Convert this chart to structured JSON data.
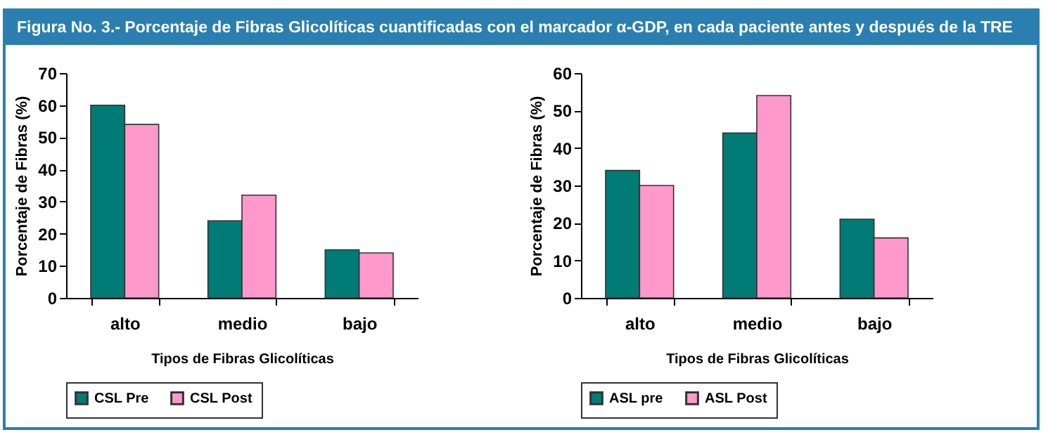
{
  "chart_data": [
    {
      "type": "bar",
      "title": "Figura No. 3.- Porcentaje de Fibras Glicolíticas cuantificadas con el marcador α-GDP, en cada paciente antes y después de la TRE",
      "xlabel": "Tipos de Fibras Glicolíticas",
      "ylabel": "Porcentaje de Fibras (%)",
      "categories": [
        "alto",
        "medio",
        "bajo"
      ],
      "ylim": [
        0,
        70
      ],
      "yticks": [
        0,
        10,
        20,
        30,
        40,
        50,
        60,
        70
      ],
      "grid": false,
      "legend": "bottom",
      "series": [
        {
          "name": "CSL Pre",
          "color": "#007b76",
          "values": [
            60,
            24,
            15
          ]
        },
        {
          "name": "CSL Post",
          "color": "#ff99cc",
          "values": [
            54,
            32,
            14
          ]
        }
      ]
    },
    {
      "type": "bar",
      "xlabel": "Tipos de Fibras Glicolíticas",
      "ylabel": "Porcentaje de Fibras (%)",
      "categories": [
        "alto",
        "medio",
        "bajo"
      ],
      "ylim": [
        0,
        60
      ],
      "yticks": [
        0,
        10,
        20,
        30,
        40,
        50,
        60
      ],
      "grid": false,
      "legend": "bottom",
      "series": [
        {
          "name": "ASL pre",
          "color": "#007b76",
          "values": [
            34,
            44,
            21
          ]
        },
        {
          "name": "ASL Post",
          "color": "#ff99cc",
          "values": [
            30,
            54,
            16
          ]
        }
      ]
    }
  ]
}
